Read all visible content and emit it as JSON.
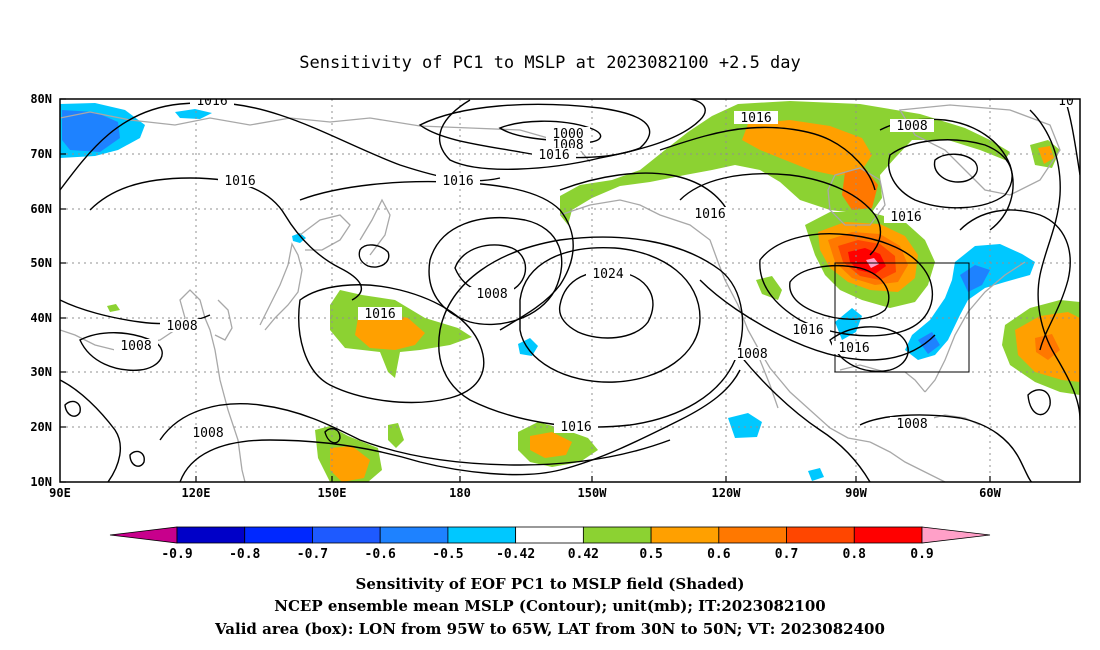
{
  "title": "Sensitivity of PC1 to MSLP at 2023082100 +2.5 day",
  "lat_labels": [
    "80N",
    "70N",
    "60N",
    "50N",
    "40N",
    "30N",
    "20N",
    "10N"
  ],
  "lon_labels": [
    "90E",
    "120E",
    "150E",
    "180",
    "150W",
    "120W",
    "90W",
    "60W"
  ],
  "contour_labels": [
    "1016",
    "1000",
    "1008",
    "1016",
    "1016",
    "1016",
    "1008",
    "1016",
    "1016",
    "1024",
    "1016",
    "1008",
    "1008",
    "1008",
    "1016",
    "1016",
    "1008",
    "1016",
    "1008",
    "1008",
    "10"
  ],
  "colorbar": {
    "labels": [
      "-0.9",
      "-0.8",
      "-0.7",
      "-0.6",
      "-0.5",
      "-0.42",
      "0.42",
      "0.5",
      "0.6",
      "0.7",
      "0.8",
      "0.9"
    ],
    "colors": [
      "#0000c8",
      "#0028ff",
      "#1e5aff",
      "#1e82ff",
      "#00c8ff",
      "#ffffff",
      "#8cd232",
      "#ffa000",
      "#ff7800",
      "#ff4600",
      "#ff0000"
    ],
    "low_end_color": "#c8008c",
    "high_end_color": "#ffa0c8"
  },
  "captions": [
    "Sensitivity of EOF PC1 to MSLP field (Shaded)",
    "NCEP ensemble mean MSLP (Contour); unit(mb); IT:2023082100",
    "Valid area (box): LON from 95W to 65W, LAT from 30N to 50N; VT: 2023082400"
  ]
}
